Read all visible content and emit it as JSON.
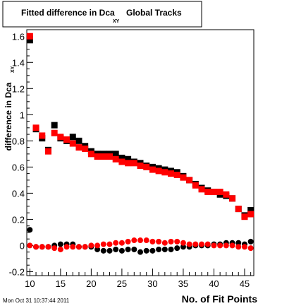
{
  "chart_data": {
    "type": "scatter",
    "title_main": "Fitted difference in Dca",
    "title_sub": "XY",
    "title_tail": "Global Tracks",
    "xlabel": "No. of Fit Points",
    "ylabel_main": "difference in Dca",
    "ylabel_sub": "XY",
    "xlim": [
      9.5,
      46.5
    ],
    "ylim": [
      -0.23,
      1.65
    ],
    "x_ticks": [
      10,
      15,
      20,
      25,
      30,
      35,
      40,
      45
    ],
    "y_ticks": [
      -0.2,
      0,
      0.2,
      0.4,
      0.6,
      0.8,
      1,
      1.2,
      1.4,
      1.6
    ],
    "y_tick_labels": [
      "-0.2",
      "0",
      "0.2",
      "0.4",
      "0.6",
      "0.8",
      "1",
      "1.2",
      "1.4",
      "1.6"
    ],
    "grid": false,
    "footer": "Mon Oct 31 10:37:44 2011",
    "series": [
      {
        "marker": "square",
        "color": "#000000",
        "x": [
          10,
          11,
          12,
          13,
          14,
          15,
          16,
          17,
          18,
          19,
          20,
          21,
          22,
          23,
          24,
          25,
          26,
          27,
          28,
          29,
          30,
          31,
          32,
          33,
          34,
          35,
          36,
          37,
          38,
          39,
          40,
          41,
          42,
          43,
          44,
          45,
          46
        ],
        "y": [
          1.57,
          0.89,
          0.82,
          0.73,
          0.92,
          0.82,
          0.8,
          0.83,
          0.8,
          0.76,
          0.72,
          0.7,
          0.7,
          0.7,
          0.7,
          0.67,
          0.66,
          0.64,
          0.63,
          0.61,
          0.6,
          0.59,
          0.58,
          0.57,
          0.56,
          0.53,
          0.5,
          0.47,
          0.44,
          0.42,
          0.41,
          0.39,
          0.38,
          0.36,
          0.28,
          0.23,
          0.27
        ]
      },
      {
        "marker": "square",
        "color": "#ff0000",
        "x": [
          10,
          11,
          12,
          13,
          14,
          15,
          16,
          17,
          18,
          19,
          20,
          21,
          22,
          23,
          24,
          25,
          26,
          27,
          28,
          29,
          30,
          31,
          32,
          33,
          34,
          35,
          36,
          37,
          38,
          39,
          40,
          41,
          42,
          43,
          44,
          45,
          46
        ],
        "y": [
          1.6,
          0.9,
          0.84,
          0.72,
          0.86,
          0.83,
          0.81,
          0.78,
          0.75,
          0.74,
          0.7,
          0.68,
          0.68,
          0.68,
          0.66,
          0.64,
          0.63,
          0.63,
          0.61,
          0.6,
          0.58,
          0.57,
          0.56,
          0.55,
          0.54,
          0.52,
          0.5,
          0.46,
          0.43,
          0.41,
          0.41,
          0.41,
          0.39,
          0.36,
          0.28,
          0.22,
          0.24
        ]
      },
      {
        "marker": "circle",
        "color": "#000000",
        "x": [
          10,
          11,
          12,
          13,
          14,
          15,
          16,
          17,
          18,
          19,
          20,
          21,
          22,
          23,
          24,
          25,
          26,
          27,
          28,
          29,
          30,
          31,
          32,
          33,
          34,
          35,
          36,
          37,
          38,
          39,
          40,
          41,
          42,
          43,
          44,
          45,
          46
        ],
        "y": [
          0.12,
          -0.01,
          -0.01,
          -0.01,
          0.0,
          0.01,
          0.01,
          0.01,
          -0.01,
          -0.01,
          -0.01,
          -0.03,
          -0.04,
          -0.04,
          -0.03,
          -0.04,
          -0.03,
          -0.03,
          -0.05,
          -0.04,
          -0.04,
          -0.03,
          -0.03,
          -0.03,
          -0.02,
          -0.01,
          -0.01,
          0.0,
          0.0,
          0.0,
          0.01,
          0.01,
          0.02,
          0.02,
          0.02,
          0.01,
          0.03
        ]
      },
      {
        "marker": "circle",
        "color": "#ff0000",
        "x": [
          10,
          11,
          12,
          13,
          14,
          15,
          16,
          17,
          18,
          19,
          20,
          21,
          22,
          23,
          24,
          25,
          26,
          27,
          28,
          29,
          30,
          31,
          32,
          33,
          34,
          35,
          36,
          37,
          38,
          39,
          40,
          41,
          42,
          43,
          44,
          45,
          46
        ],
        "y": [
          0.0,
          -0.01,
          -0.01,
          -0.01,
          -0.02,
          -0.03,
          -0.01,
          -0.01,
          -0.01,
          -0.01,
          0.0,
          0.0,
          0.01,
          0.01,
          0.02,
          0.02,
          0.03,
          0.04,
          0.04,
          0.04,
          0.03,
          0.03,
          0.02,
          0.03,
          0.03,
          0.02,
          0.01,
          0.01,
          0.01,
          0.01,
          0.0,
          0.0,
          0.0,
          0.0,
          -0.01,
          -0.01,
          -0.02
        ]
      }
    ]
  }
}
